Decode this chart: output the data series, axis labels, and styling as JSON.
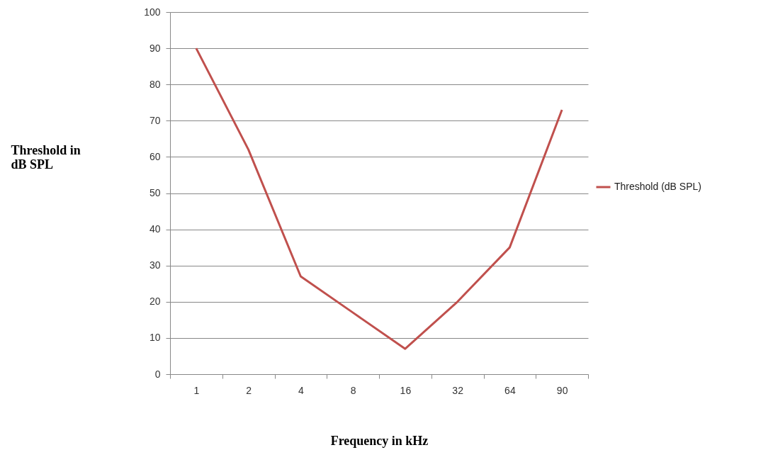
{
  "chart_data": {
    "type": "line",
    "xlabel": "Frequency in kHz",
    "ylabel": "Threshold in dB SPL",
    "categories": [
      "1",
      "2",
      "4",
      "8",
      "16",
      "32",
      "64",
      "90"
    ],
    "series": [
      {
        "name": "Threshold (dB SPL)",
        "color": "#c0504d",
        "values": [
          90,
          62,
          27,
          17,
          7,
          20,
          35,
          73
        ]
      }
    ],
    "ylim": [
      0,
      100
    ],
    "yticks": [
      0,
      10,
      20,
      30,
      40,
      50,
      60,
      70,
      80,
      90,
      100
    ],
    "grid": "y",
    "legend": "right",
    "marker": "none",
    "line_style": "solid"
  }
}
